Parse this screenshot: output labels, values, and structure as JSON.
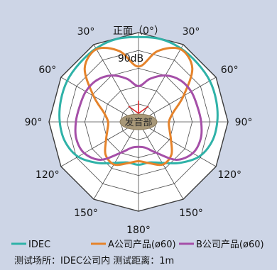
{
  "chart_data": {
    "type": "polar-line",
    "top_label": "正面（0°）",
    "scale_label": "90dB",
    "center_label": "发音部",
    "angle_labels": [
      {
        "angle": -30,
        "text": "30°"
      },
      {
        "angle": 30,
        "text": "30°"
      },
      {
        "angle": -60,
        "text": "60°"
      },
      {
        "angle": 60,
        "text": "60°"
      },
      {
        "angle": -90,
        "text": "90°"
      },
      {
        "angle": 90,
        "text": "90°"
      },
      {
        "angle": -120,
        "text": "120°"
      },
      {
        "angle": 120,
        "text": "120°"
      },
      {
        "angle": -150,
        "text": "150°"
      },
      {
        "angle": 150,
        "text": "150°"
      },
      {
        "angle": 180,
        "text": "180°"
      }
    ],
    "series": [
      {
        "name": "IDEC",
        "color": "#2fb2a8",
        "angles": [
          0,
          15,
          30,
          45,
          60,
          75,
          90,
          105,
          120,
          135,
          150,
          165,
          180,
          195,
          210,
          225,
          240,
          255,
          270,
          285,
          300,
          315,
          330,
          345
        ],
        "r": [
          0.95,
          0.96,
          0.95,
          0.93,
          0.92,
          0.9,
          0.88,
          0.85,
          0.78,
          0.65,
          0.53,
          0.47,
          0.48,
          0.47,
          0.53,
          0.65,
          0.78,
          0.85,
          0.88,
          0.9,
          0.92,
          0.93,
          0.95,
          0.96
        ]
      },
      {
        "name": "A公司产品(ø60)",
        "color": "#e5832b",
        "angles": [
          0,
          15,
          30,
          45,
          60,
          75,
          90,
          105,
          120,
          135,
          150,
          165,
          180,
          195,
          210,
          225,
          240,
          255,
          270,
          285,
          300,
          315,
          330,
          345
        ],
        "r": [
          0.62,
          0.82,
          0.94,
          0.85,
          0.58,
          0.4,
          0.34,
          0.36,
          0.42,
          0.52,
          0.55,
          0.48,
          0.44,
          0.48,
          0.55,
          0.52,
          0.42,
          0.36,
          0.34,
          0.4,
          0.58,
          0.85,
          0.94,
          0.82
        ]
      },
      {
        "name": "B公司产品(ø60)",
        "color": "#a54fa8",
        "angles": [
          0,
          15,
          30,
          45,
          60,
          75,
          90,
          105,
          120,
          135,
          150,
          165,
          180,
          195,
          210,
          225,
          240,
          255,
          270,
          285,
          300,
          315,
          330,
          345
        ],
        "r": [
          0.4,
          0.5,
          0.6,
          0.66,
          0.68,
          0.68,
          0.7,
          0.72,
          0.7,
          0.6,
          0.4,
          0.3,
          0.28,
          0.3,
          0.4,
          0.6,
          0.7,
          0.72,
          0.7,
          0.68,
          0.68,
          0.66,
          0.6,
          0.5
        ]
      }
    ],
    "legend_position": "bottom"
  },
  "note": "测试场所：IDEC公司内 测试距离：1m"
}
